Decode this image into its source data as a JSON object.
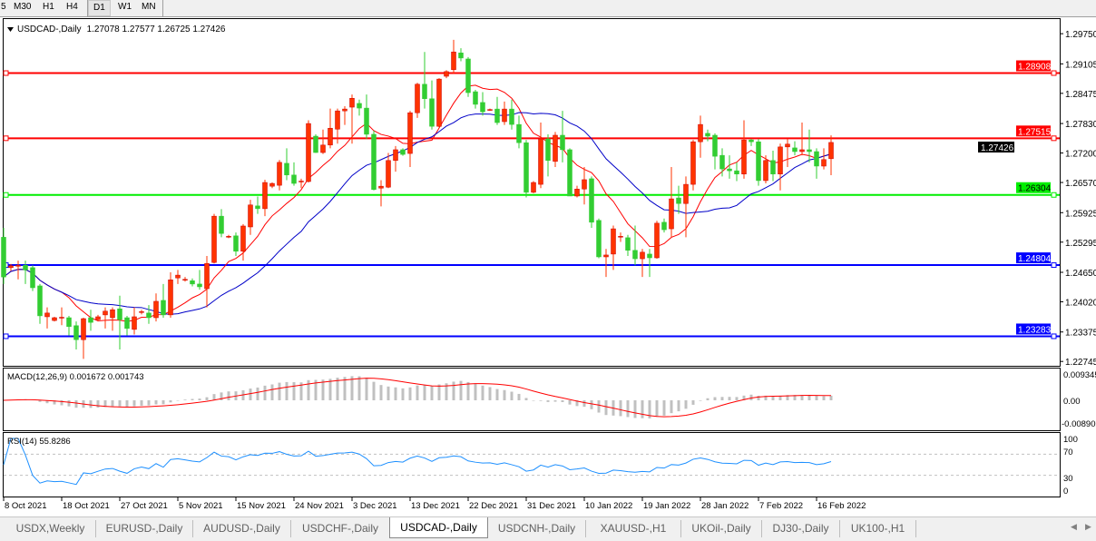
{
  "toolbar": {
    "timeframes": [
      {
        "label": "5"
      },
      {
        "label": "M30"
      },
      {
        "label": "H1"
      },
      {
        "label": "H4"
      },
      {
        "label": "D1",
        "active": true
      },
      {
        "label": "W1"
      },
      {
        "label": "MN"
      }
    ]
  },
  "chart": {
    "symbol_label": "USDCAD-,Daily",
    "ohlc_label": "1.27078 1.27577 1.26725 1.27426",
    "bid_label": "1.27426",
    "colors": {
      "bull": "#ff3300",
      "bear": "#32cd32",
      "ma_fast": "#ff0000",
      "ma_slow": "#0000c8",
      "grid": "#c0c0c0"
    },
    "price_axis": [
      "1.29750",
      "1.29105",
      "1.28475",
      "1.27830",
      "1.27200",
      "1.26570",
      "1.25925",
      "1.25295",
      "1.24650",
      "1.24020",
      "1.23375",
      "1.22745"
    ],
    "levels": [
      {
        "price": 1.28908,
        "label": "1.28908",
        "color": "#ff0000"
      },
      {
        "price": 1.27515,
        "label": "1.27515",
        "color": "#ff0000"
      },
      {
        "price": 1.26304,
        "label": "1.26304",
        "color": "#00ee00"
      },
      {
        "price": 1.24804,
        "label": "1.24804",
        "color": "#0000ff"
      },
      {
        "price": 1.23283,
        "label": "1.23283",
        "color": "#0000ff"
      }
    ],
    "candles": [
      [
        1.254,
        1.256,
        1.244,
        1.2455
      ],
      [
        1.2475,
        1.2483,
        1.2468,
        1.2479
      ],
      [
        1.2479,
        1.249,
        1.245,
        1.248
      ],
      [
        1.248,
        1.249,
        1.244,
        1.247
      ],
      [
        1.2475,
        1.248,
        1.2425,
        1.2432
      ],
      [
        1.2436,
        1.244,
        1.2355,
        1.2372
      ],
      [
        1.237,
        1.239,
        1.2345,
        1.2378
      ],
      [
        1.2362,
        1.237,
        1.236,
        1.2368
      ],
      [
        1.2368,
        1.239,
        1.2352,
        1.2369
      ],
      [
        1.2368,
        1.2372,
        1.233,
        1.2349
      ],
      [
        1.2351,
        1.236,
        1.23,
        1.2321
      ],
      [
        1.2321,
        1.2368,
        1.228,
        1.2366
      ],
      [
        1.2368,
        1.2385,
        1.234,
        1.2358
      ],
      [
        1.2364,
        1.2374,
        1.236,
        1.237
      ],
      [
        1.2374,
        1.239,
        1.2345,
        1.2382
      ],
      [
        1.2368,
        1.239,
        1.234,
        1.2385
      ],
      [
        1.2387,
        1.2415,
        1.23,
        1.2364
      ],
      [
        1.2368,
        1.2372,
        1.233,
        1.2345
      ],
      [
        1.2343,
        1.239,
        1.2332,
        1.237
      ],
      [
        1.238,
        1.2385,
        1.2375,
        1.2381
      ],
      [
        1.2378,
        1.2395,
        1.2355,
        1.2368
      ],
      [
        1.2368,
        1.242,
        1.236,
        1.2403
      ],
      [
        1.2405,
        1.244,
        1.2368,
        1.2374
      ],
      [
        1.2374,
        1.2465,
        1.2368,
        1.2449
      ],
      [
        1.2453,
        1.247,
        1.244,
        1.2459
      ],
      [
        1.2449,
        1.2455,
        1.2445,
        1.245
      ],
      [
        1.2447,
        1.2452,
        1.2435,
        1.244
      ],
      [
        1.244,
        1.247,
        1.2428,
        1.2434
      ],
      [
        1.243,
        1.25,
        1.239,
        1.2484
      ],
      [
        1.2486,
        1.259,
        1.2484,
        1.2585
      ],
      [
        1.2585,
        1.26,
        1.254,
        1.2548
      ],
      [
        1.2541,
        1.2545,
        1.2538,
        1.2542
      ],
      [
        1.2543,
        1.255,
        1.25,
        1.251
      ],
      [
        1.251,
        1.2568,
        1.249,
        1.2564
      ],
      [
        1.2562,
        1.262,
        1.2545,
        1.2609
      ],
      [
        1.2607,
        1.2627,
        1.259,
        1.2601
      ],
      [
        1.2601,
        1.2663,
        1.2585,
        1.2657
      ],
      [
        1.2649,
        1.2657,
        1.2645,
        1.2655
      ],
      [
        1.2651,
        1.2705,
        1.264,
        1.27
      ],
      [
        1.2698,
        1.273,
        1.2662,
        1.2673
      ],
      [
        1.2673,
        1.27,
        1.265,
        1.2655
      ],
      [
        1.2659,
        1.2665,
        1.2645,
        1.266
      ],
      [
        1.2659,
        1.279,
        1.2657,
        1.2783
      ],
      [
        1.2756,
        1.276,
        1.272,
        1.2721
      ],
      [
        1.2721,
        1.277,
        1.2718,
        1.2737
      ],
      [
        1.2737,
        1.2815,
        1.273,
        1.2773
      ],
      [
        1.2771,
        1.2815,
        1.274,
        1.281
      ],
      [
        1.281,
        1.282,
        1.278,
        1.2814
      ],
      [
        1.2818,
        1.2845,
        1.274,
        1.2837
      ],
      [
        1.2826,
        1.2834,
        1.28,
        1.2816
      ],
      [
        1.2816,
        1.2845,
        1.275,
        1.276
      ],
      [
        1.276,
        1.2768,
        1.264,
        1.2642
      ],
      [
        1.2645,
        1.2662,
        1.2606,
        1.2649
      ],
      [
        1.2647,
        1.272,
        1.2645,
        1.2704
      ],
      [
        1.2704,
        1.2735,
        1.268,
        1.2727
      ],
      [
        1.2727,
        1.273,
        1.2714,
        1.2717
      ],
      [
        1.2719,
        1.281,
        1.269,
        1.2806
      ],
      [
        1.2806,
        1.287,
        1.2795,
        1.2867
      ],
      [
        1.2867,
        1.2936,
        1.2815,
        1.2836
      ],
      [
        1.2836,
        1.2875,
        1.277,
        1.2777
      ],
      [
        1.2777,
        1.288,
        1.2775,
        1.2878
      ],
      [
        1.2884,
        1.2897,
        1.288,
        1.2894
      ],
      [
        1.2898,
        1.2962,
        1.289,
        1.2936
      ],
      [
        1.2934,
        1.2944,
        1.2916,
        1.2923
      ],
      [
        1.2921,
        1.2925,
        1.284,
        1.2849
      ],
      [
        1.2851,
        1.2855,
        1.2815,
        1.2824
      ],
      [
        1.2828,
        1.285,
        1.28,
        1.2808
      ],
      [
        1.2812,
        1.2815,
        1.281,
        1.2813
      ],
      [
        1.2814,
        1.284,
        1.278,
        1.2785
      ],
      [
        1.2787,
        1.283,
        1.278,
        1.2814
      ],
      [
        1.2814,
        1.2834,
        1.277,
        1.2781
      ],
      [
        1.2781,
        1.28,
        1.273,
        1.2742
      ],
      [
        1.2742,
        1.2748,
        1.2625,
        1.2636
      ],
      [
        1.2636,
        1.266,
        1.2634,
        1.2657
      ],
      [
        1.2653,
        1.2785,
        1.2645,
        1.275
      ],
      [
        1.275,
        1.276,
        1.267,
        1.2704
      ],
      [
        1.2702,
        1.2765,
        1.269,
        1.2758
      ],
      [
        1.2758,
        1.281,
        1.27,
        1.2727
      ],
      [
        1.2727,
        1.273,
        1.2628,
        1.2628
      ],
      [
        1.2628,
        1.265,
        1.2625,
        1.2643
      ],
      [
        1.2643,
        1.269,
        1.261,
        1.2663
      ],
      [
        1.2665,
        1.267,
        1.256,
        1.2572
      ],
      [
        1.2576,
        1.258,
        1.2495,
        1.2498
      ],
      [
        1.2498,
        1.2515,
        1.2455,
        1.2502
      ],
      [
        1.2504,
        1.2565,
        1.247,
        1.2558
      ],
      [
        1.2541,
        1.255,
        1.253,
        1.2542
      ],
      [
        1.2539,
        1.2545,
        1.25,
        1.2512
      ],
      [
        1.2512,
        1.2565,
        1.248,
        1.2494
      ],
      [
        1.2494,
        1.2515,
        1.2455,
        1.2508
      ],
      [
        1.2504,
        1.2515,
        1.2455,
        1.2496
      ],
      [
        1.2496,
        1.2575,
        1.2494,
        1.257
      ],
      [
        1.2572,
        1.258,
        1.255,
        1.2556
      ],
      [
        1.2558,
        1.269,
        1.254,
        1.2622
      ],
      [
        1.2624,
        1.265,
        1.259,
        1.2612
      ],
      [
        1.2612,
        1.267,
        1.254,
        1.2653
      ],
      [
        1.2653,
        1.2748,
        1.264,
        1.2744
      ],
      [
        1.2744,
        1.28,
        1.271,
        1.2781
      ],
      [
        1.2762,
        1.277,
        1.2745,
        1.2756
      ],
      [
        1.2758,
        1.2762,
        1.2685,
        1.2713
      ],
      [
        1.2715,
        1.273,
        1.267,
        1.2686
      ],
      [
        1.2686,
        1.2715,
        1.2665,
        1.2682
      ],
      [
        1.2682,
        1.27,
        1.266,
        1.2675
      ],
      [
        1.2675,
        1.279,
        1.2665,
        1.2748
      ],
      [
        1.2748,
        1.275,
        1.2735,
        1.2744
      ],
      [
        1.2744,
        1.275,
        1.265,
        1.2661
      ],
      [
        1.2661,
        1.2715,
        1.2655,
        1.2704
      ],
      [
        1.2704,
        1.2725,
        1.266,
        1.2675
      ],
      [
        1.2675,
        1.274,
        1.264,
        1.2733
      ],
      [
        1.2733,
        1.275,
        1.269,
        1.2739
      ],
      [
        1.2731,
        1.2745,
        1.2715,
        1.2723
      ],
      [
        1.2723,
        1.2785,
        1.2715,
        1.2727
      ],
      [
        1.2727,
        1.277,
        1.27,
        1.2723
      ],
      [
        1.2723,
        1.273,
        1.2665,
        1.2692
      ],
      [
        1.2692,
        1.273,
        1.2685,
        1.2706
      ],
      [
        1.27078,
        1.27577,
        1.26725,
        1.27426
      ]
    ],
    "date_axis": [
      {
        "bar": 0,
        "label": "8 Oct 2021"
      },
      {
        "bar": 8,
        "label": "18 Oct 2021"
      },
      {
        "bar": 16,
        "label": "27 Oct 2021"
      },
      {
        "bar": 24,
        "label": "5 Nov 2021"
      },
      {
        "bar": 32,
        "label": "15 Nov 2021"
      },
      {
        "bar": 40,
        "label": "24 Nov 2021"
      },
      {
        "bar": 48,
        "label": "3 Dec 2021"
      },
      {
        "bar": 56,
        "label": "13 Dec 2021"
      },
      {
        "bar": 64,
        "label": "22 Dec 2021"
      },
      {
        "bar": 72,
        "label": "31 Dec 2021"
      },
      {
        "bar": 80,
        "label": "10 Jan 2022"
      },
      {
        "bar": 88,
        "label": "19 Jan 2022"
      },
      {
        "bar": 96,
        "label": "28 Jan 2022"
      },
      {
        "bar": 104,
        "label": "7 Feb 2022"
      },
      {
        "bar": 112,
        "label": "16 Feb 2022"
      }
    ]
  },
  "macd": {
    "label": "MACD(12,26,9) 0.001672 0.001743",
    "axis": [
      "0.009345",
      "0.00",
      "-0.008902"
    ],
    "range": [
      -0.008902,
      0.009345
    ]
  },
  "rsi": {
    "label": "RSI(14) 55.8286",
    "axis": [
      "100",
      "70",
      "30",
      "0"
    ],
    "levels": [
      70,
      30
    ]
  },
  "tabs": [
    {
      "label": "USDX,Weekly"
    },
    {
      "label": "EURUSD-,Daily"
    },
    {
      "label": "AUDUSD-,Daily"
    },
    {
      "label": "USDCHF-,Daily"
    },
    {
      "label": "USDCAD-,Daily",
      "active": true
    },
    {
      "label": "USDCNH-,Daily"
    },
    {
      "label": "XAUUSD-,H1"
    },
    {
      "label": "UKOil-,Daily"
    },
    {
      "label": "DJ30-,Daily"
    },
    {
      "label": "UK100-,H1"
    }
  ],
  "tab_scroll": {
    "left": "◀",
    "right": "▶"
  }
}
